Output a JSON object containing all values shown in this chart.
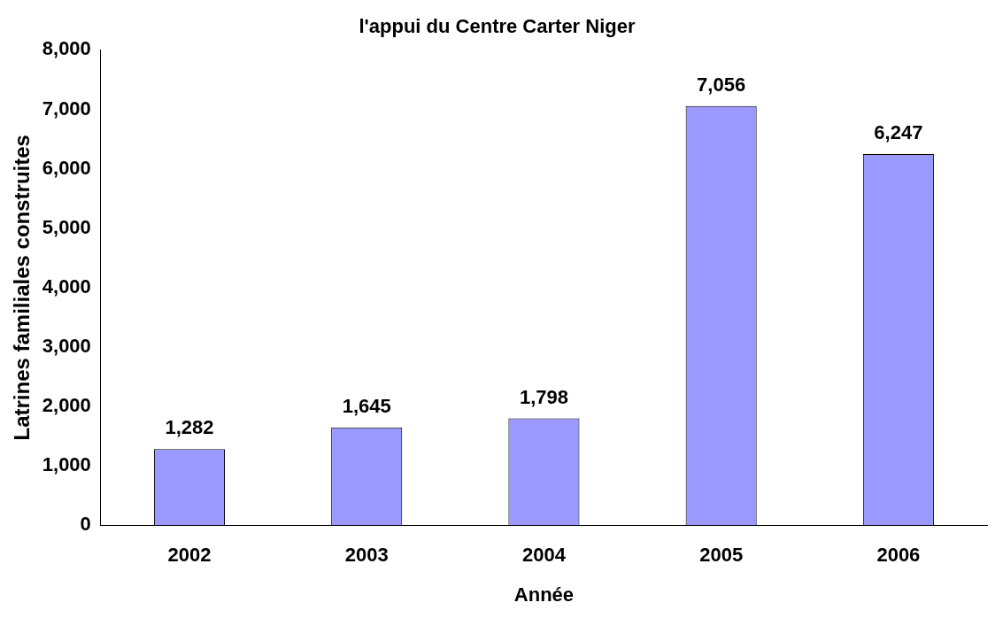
{
  "chart_data": {
    "type": "bar",
    "title": "l'appui du Centre Carter Niger",
    "xlabel": "Année",
    "ylabel": "Latrines familiales construites",
    "categories": [
      "2002",
      "2003",
      "2004",
      "2005",
      "2006"
    ],
    "values": [
      1282,
      1645,
      1798,
      7056,
      6247
    ],
    "color": "#9999ff",
    "value_labels": [
      "1,282",
      "1,645",
      "1,798",
      "7,056",
      "6,247"
    ],
    "ylim": [
      0,
      8000
    ],
    "yticks": [
      {
        "value": 0,
        "label": "0"
      },
      {
        "value": 1000,
        "label": "1,000"
      },
      {
        "value": 2000,
        "label": "2,000"
      },
      {
        "value": 3000,
        "label": "3,000"
      },
      {
        "value": 4000,
        "label": "4,000"
      },
      {
        "value": 5000,
        "label": "5,000"
      },
      {
        "value": 6000,
        "label": "6,000"
      },
      {
        "value": 7000,
        "label": "7,000"
      },
      {
        "value": 8000,
        "label": "8,000"
      }
    ],
    "grid": false,
    "legend": false
  }
}
